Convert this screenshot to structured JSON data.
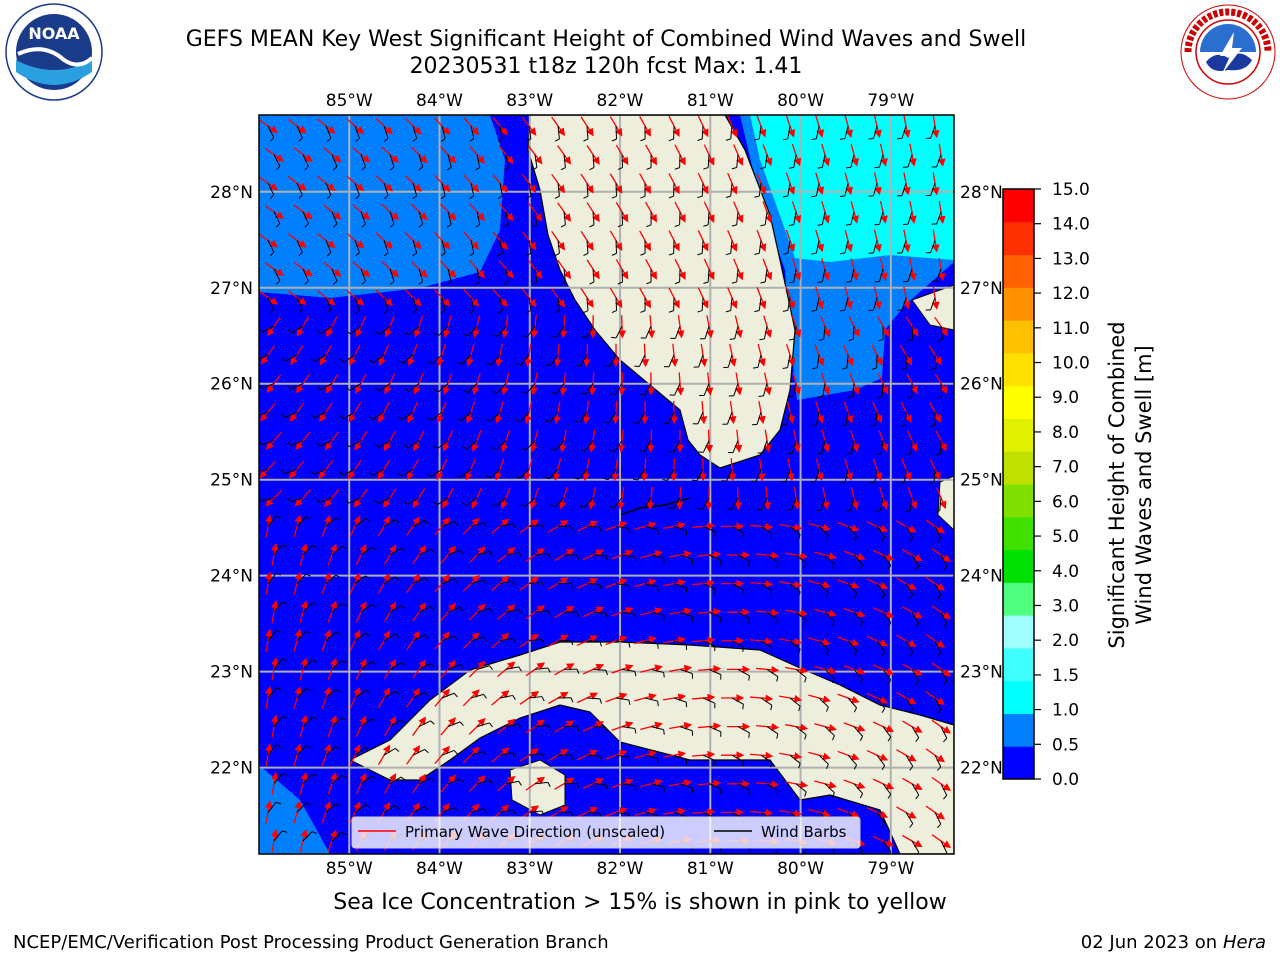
{
  "header": {
    "title_line1": "GEFS MEAN Key West Significant Height of Combined Wind Waves and Swell",
    "title_line2": "20230531 t18z 120h fcst   Max: 1.41"
  },
  "logos": {
    "noaa": {
      "icon": "noaa-logo",
      "label": "NOAA",
      "ring_text": "NATIONAL OCEANIC AND ATMOSPHERIC ADMINISTRATION · U.S. DEPARTMENT OF COMMERCE"
    },
    "nws": {
      "icon": "nws-logo",
      "ring_text": "NATIONAL WEATHER SERVICE"
    }
  },
  "map": {
    "lon_ticks": [
      "85°W",
      "84°W",
      "83°W",
      "82°W",
      "81°W",
      "80°W",
      "79°W"
    ],
    "lat_ticks": [
      "28°N",
      "27°N",
      "26°N",
      "25°N",
      "24°N",
      "23°N",
      "22°N"
    ],
    "lon_range": [
      -86.0,
      -78.3
    ],
    "lat_range": [
      21.1,
      28.8
    ],
    "legend": {
      "primary_wave": "Primary Wave Direction (unscaled)",
      "wind_barbs": "Wind Barbs"
    },
    "colors": {
      "land": "#eeeedd",
      "ocean_low": "#0000ff",
      "ocean_mid": "#0080ff",
      "ocean_high": "#00ffff",
      "wave_arrow": "#ff0000",
      "barb": "#000000"
    }
  },
  "colorbar": {
    "label_line1": "Significant Height of Combined",
    "label_line2": "Wind Waves and Swell [m]",
    "ticks": [
      "0.0",
      "0.5",
      "1.0",
      "1.5",
      "2.0",
      "3.0",
      "4.0",
      "5.0",
      "6.0",
      "7.0",
      "8.0",
      "9.0",
      "10.0",
      "11.0",
      "12.0",
      "13.0",
      "14.0",
      "15.0"
    ],
    "colors": [
      "#0000ff",
      "#0080ff",
      "#00ffff",
      "#40ffff",
      "#a0ffff",
      "#50ff80",
      "#00e000",
      "#40e000",
      "#80e000",
      "#c0e000",
      "#e0f000",
      "#ffff00",
      "#ffe000",
      "#ffc000",
      "#ff9000",
      "#ff6000",
      "#ff3000",
      "#ff0000"
    ]
  },
  "footer": {
    "note": "Sea Ice Concentration > 15% is shown in pink to yellow",
    "credit": "NCEP/EMC/Verification Post Processing Product Generation Branch",
    "date": "02 Jun 2023 on",
    "host": "Hera"
  }
}
